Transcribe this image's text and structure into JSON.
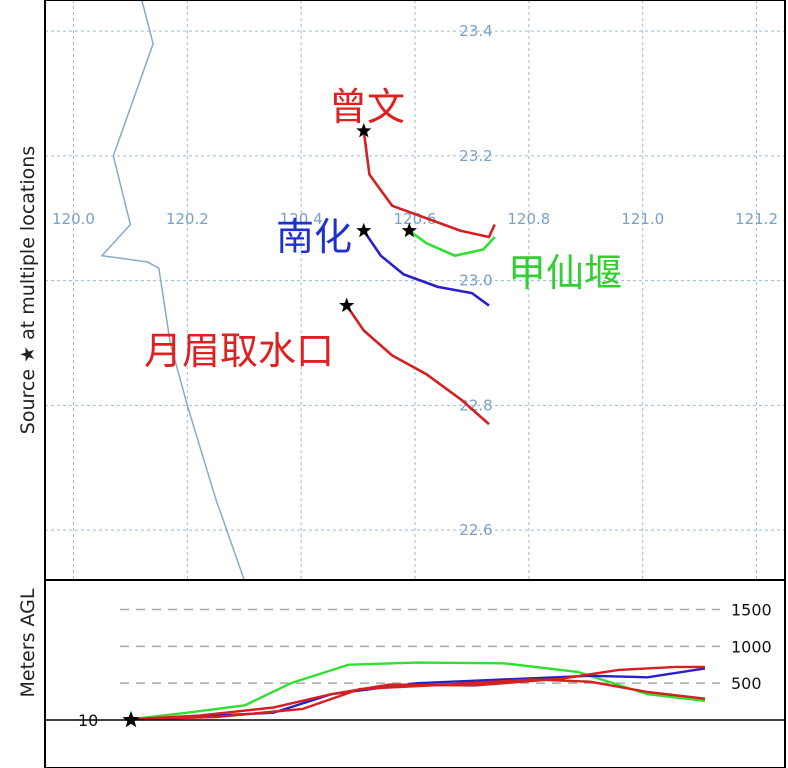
{
  "chart_data": [
    {
      "type": "line",
      "panel": "map",
      "ylabel": "Source ★ at multiple locations",
      "x_ticks": [
        "120.0",
        "120.2",
        "120.4",
        "120.6",
        "120.8",
        "121.0",
        "121.2"
      ],
      "y_ticks": [
        "22.6",
        "22.8",
        "23.0",
        "23.2",
        "23.4"
      ],
      "xlim": [
        119.95,
        121.25
      ],
      "ylim": [
        22.52,
        23.45
      ],
      "grid": true,
      "place_labels": [
        {
          "text": "曾文",
          "color": "#e02020"
        },
        {
          "text": "南化",
          "color": "#2030d0"
        },
        {
          "text": "甲仙堰",
          "color": "#30d030"
        },
        {
          "text": "月眉取水口",
          "color": "#e02020"
        }
      ],
      "series": [
        {
          "color": "#d42020",
          "points": [
            [
              120.51,
              23.24
            ],
            [
              120.52,
              23.17
            ],
            [
              120.56,
              23.12
            ],
            [
              120.62,
              23.1
            ],
            [
              120.68,
              23.08
            ],
            [
              120.73,
              23.07
            ],
            [
              120.74,
              23.09
            ]
          ]
        },
        {
          "color": "#2a20c8",
          "points": [
            [
              120.51,
              23.08
            ],
            [
              120.54,
              23.04
            ],
            [
              120.58,
              23.01
            ],
            [
              120.64,
              22.99
            ],
            [
              120.7,
              22.98
            ],
            [
              120.73,
              22.96
            ]
          ]
        },
        {
          "color": "#30e030",
          "points": [
            [
              120.59,
              23.08
            ],
            [
              120.62,
              23.06
            ],
            [
              120.67,
              23.04
            ],
            [
              120.72,
              23.05
            ],
            [
              120.74,
              23.07
            ]
          ]
        },
        {
          "color": "#d42020",
          "points": [
            [
              120.48,
              22.96
            ],
            [
              120.51,
              22.92
            ],
            [
              120.56,
              22.88
            ],
            [
              120.62,
              22.85
            ],
            [
              120.68,
              22.81
            ],
            [
              120.73,
              22.77
            ]
          ]
        }
      ],
      "coastline": {
        "color": "#88aac8",
        "points": [
          [
            120.12,
            23.45
          ],
          [
            120.14,
            23.38
          ],
          [
            120.07,
            23.2
          ],
          [
            120.1,
            23.09
          ],
          [
            120.05,
            23.04
          ],
          [
            120.13,
            23.03
          ],
          [
            120.15,
            23.02
          ],
          [
            120.17,
            22.9
          ],
          [
            120.2,
            22.8
          ],
          [
            120.25,
            22.65
          ],
          [
            120.3,
            22.52
          ]
        ]
      },
      "sources": [
        [
          120.51,
          23.24
        ],
        [
          120.51,
          23.08
        ],
        [
          120.59,
          23.08
        ],
        [
          120.48,
          22.96
        ]
      ]
    },
    {
      "type": "line",
      "panel": "height",
      "ylabel": "Meters AGL",
      "ylim": [
        0,
        1900
      ],
      "xlim": [
        0,
        1
      ],
      "hlines": [
        "1500",
        "1000",
        "500"
      ],
      "hline_values": [
        1500,
        1000,
        500
      ],
      "start_label": "10",
      "series": [
        {
          "color": "#30e030",
          "points": [
            [
              0,
              10
            ],
            [
              0.1,
              100
            ],
            [
              0.2,
              200
            ],
            [
              0.28,
              500
            ],
            [
              0.38,
              750
            ],
            [
              0.5,
              780
            ],
            [
              0.65,
              770
            ],
            [
              0.78,
              650
            ],
            [
              0.9,
              350
            ],
            [
              1.0,
              260
            ]
          ]
        },
        {
          "color": "#2a20c8",
          "points": [
            [
              0,
              10
            ],
            [
              0.15,
              60
            ],
            [
              0.25,
              100
            ],
            [
              0.35,
              350
            ],
            [
              0.5,
              500
            ],
            [
              0.65,
              550
            ],
            [
              0.8,
              600
            ],
            [
              0.9,
              580
            ],
            [
              1.0,
              700
            ]
          ]
        },
        {
          "color": "#d42020",
          "points": [
            [
              0,
              10
            ],
            [
              0.12,
              60
            ],
            [
              0.25,
              170
            ],
            [
              0.35,
              350
            ],
            [
              0.45,
              480
            ],
            [
              0.6,
              470
            ],
            [
              0.75,
              560
            ],
            [
              0.85,
              680
            ],
            [
              0.95,
              720
            ],
            [
              1.0,
              720
            ]
          ]
        },
        {
          "color": "#d42020",
          "points": [
            [
              0,
              10
            ],
            [
              0.15,
              40
            ],
            [
              0.3,
              150
            ],
            [
              0.4,
              420
            ],
            [
              0.55,
              480
            ],
            [
              0.7,
              550
            ],
            [
              0.8,
              520
            ],
            [
              0.9,
              380
            ],
            [
              1.0,
              290
            ]
          ]
        }
      ]
    }
  ]
}
